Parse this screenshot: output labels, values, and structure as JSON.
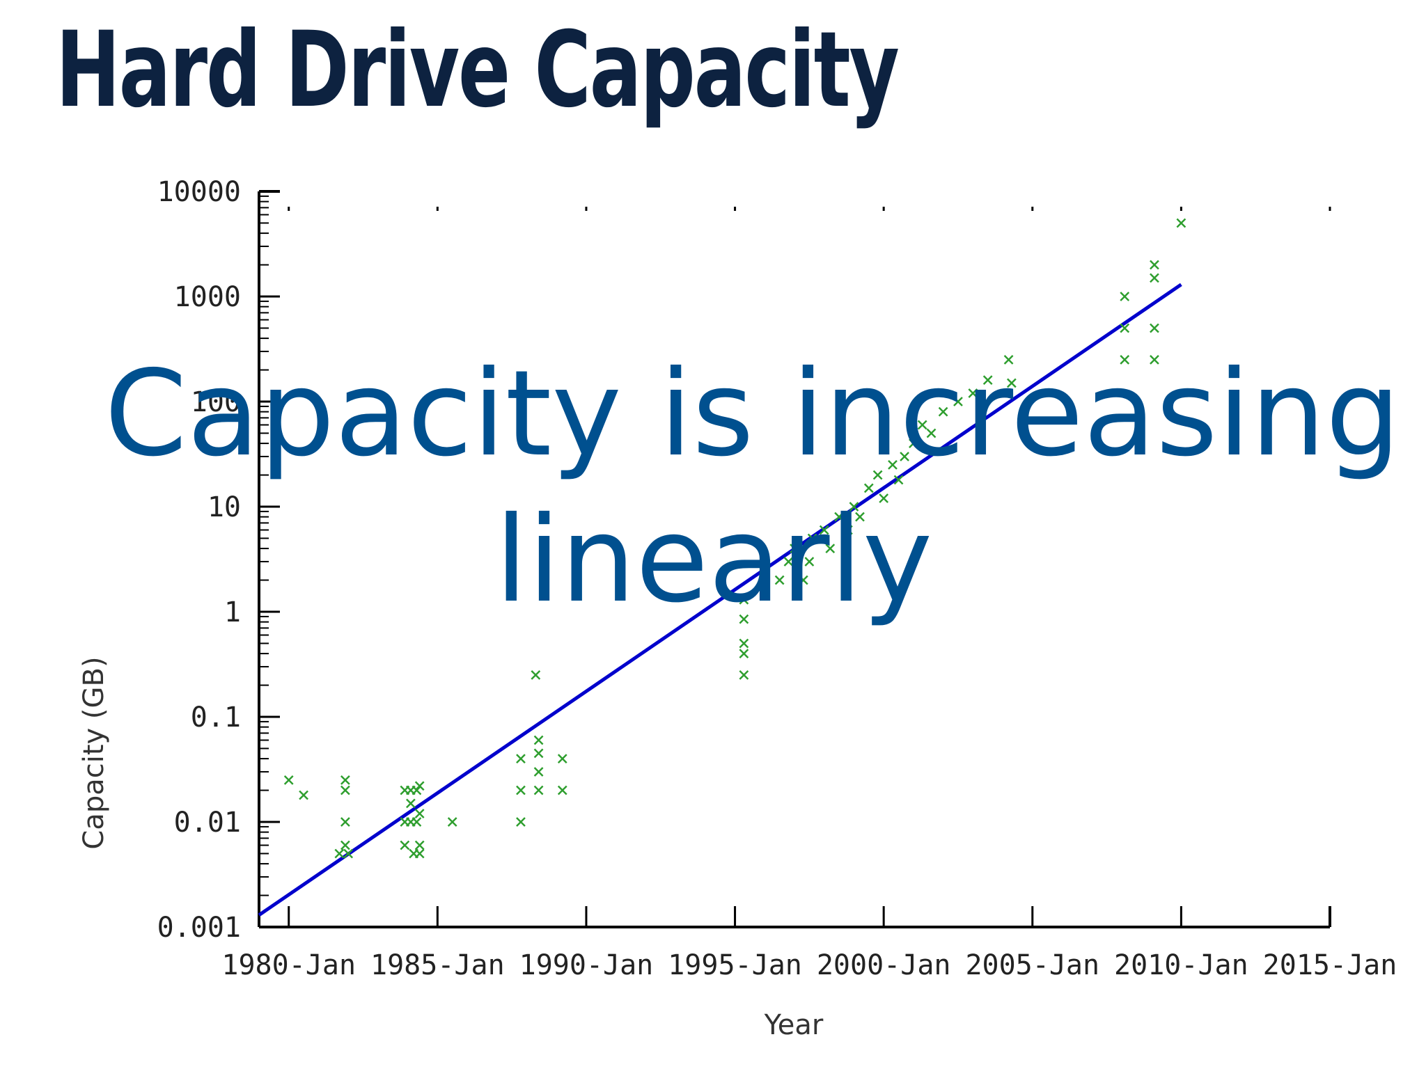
{
  "slide": {
    "title": "Hard Drive Capacity",
    "overlay_lines": [
      "Capacity is increasing",
      "linearly"
    ]
  },
  "colors": {
    "title": "#0d2240",
    "overlay_text": "#00508f",
    "trend_line": "#0000cc",
    "points": "#2e9e2e",
    "axis": "#000000"
  },
  "chart_data": {
    "type": "scatter",
    "xlabel": "Year",
    "ylabel": "Capacity (GB)",
    "y_scale": "log",
    "ylim": [
      0.001,
      10000
    ],
    "xlim": [
      1979,
      2015
    ],
    "x_ticks": [
      {
        "value": 1980,
        "label": "1980-Jan"
      },
      {
        "value": 1985,
        "label": "1985-Jan"
      },
      {
        "value": 1990,
        "label": "1990-Jan"
      },
      {
        "value": 1995,
        "label": "1995-Jan"
      },
      {
        "value": 2000,
        "label": "2000-Jan"
      },
      {
        "value": 2005,
        "label": "2005-Jan"
      },
      {
        "value": 2010,
        "label": "2010-Jan"
      },
      {
        "value": 2015,
        "label": "2015-Jan"
      }
    ],
    "y_ticks": [
      {
        "value": 0.001,
        "label": "0.001"
      },
      {
        "value": 0.01,
        "label": "0.01"
      },
      {
        "value": 0.1,
        "label": "0.1"
      },
      {
        "value": 1,
        "label": "1"
      },
      {
        "value": 10,
        "label": "10"
      },
      {
        "value": 100,
        "label": "100"
      },
      {
        "value": 1000,
        "label": "1000"
      },
      {
        "value": 10000,
        "label": "10000"
      }
    ],
    "grid": false,
    "marker": "x",
    "trend_line": {
      "x": [
        1979.0,
        2010.0
      ],
      "y": [
        0.0013,
        1300
      ]
    },
    "points": [
      {
        "x": 1980.0,
        "y": 0.025
      },
      {
        "x": 1980.5,
        "y": 0.018
      },
      {
        "x": 1981.7,
        "y": 0.005
      },
      {
        "x": 1981.9,
        "y": 0.025
      },
      {
        "x": 1981.9,
        "y": 0.02
      },
      {
        "x": 1981.9,
        "y": 0.01
      },
      {
        "x": 1981.9,
        "y": 0.006
      },
      {
        "x": 1982.0,
        "y": 0.005
      },
      {
        "x": 1983.9,
        "y": 0.02
      },
      {
        "x": 1983.9,
        "y": 0.01
      },
      {
        "x": 1983.9,
        "y": 0.006
      },
      {
        "x": 1984.1,
        "y": 0.02
      },
      {
        "x": 1984.1,
        "y": 0.015
      },
      {
        "x": 1984.1,
        "y": 0.01
      },
      {
        "x": 1984.2,
        "y": 0.005
      },
      {
        "x": 1984.3,
        "y": 0.02
      },
      {
        "x": 1984.3,
        "y": 0.01
      },
      {
        "x": 1984.4,
        "y": 0.022
      },
      {
        "x": 1984.4,
        "y": 0.012
      },
      {
        "x": 1984.4,
        "y": 0.006
      },
      {
        "x": 1984.4,
        "y": 0.005
      },
      {
        "x": 1985.5,
        "y": 0.01
      },
      {
        "x": 1987.8,
        "y": 0.04
      },
      {
        "x": 1987.8,
        "y": 0.02
      },
      {
        "x": 1987.8,
        "y": 0.01
      },
      {
        "x": 1988.3,
        "y": 0.25
      },
      {
        "x": 1988.4,
        "y": 0.06
      },
      {
        "x": 1988.4,
        "y": 0.045
      },
      {
        "x": 1988.4,
        "y": 0.03
      },
      {
        "x": 1988.4,
        "y": 0.02
      },
      {
        "x": 1989.2,
        "y": 0.04
      },
      {
        "x": 1989.2,
        "y": 0.02
      },
      {
        "x": 1995.3,
        "y": 1.3
      },
      {
        "x": 1995.3,
        "y": 0.85
      },
      {
        "x": 1995.3,
        "y": 0.5
      },
      {
        "x": 1995.3,
        "y": 0.4
      },
      {
        "x": 1995.3,
        "y": 0.25
      },
      {
        "x": 1996.5,
        "y": 2.0
      },
      {
        "x": 1996.8,
        "y": 3.0
      },
      {
        "x": 1997.0,
        "y": 4.0
      },
      {
        "x": 1997.3,
        "y": 2.0
      },
      {
        "x": 1997.5,
        "y": 3.0
      },
      {
        "x": 1997.6,
        "y": 5.0
      },
      {
        "x": 1998.0,
        "y": 6.0
      },
      {
        "x": 1998.2,
        "y": 4.0
      },
      {
        "x": 1998.5,
        "y": 8.0
      },
      {
        "x": 1998.8,
        "y": 6.0
      },
      {
        "x": 1999.0,
        "y": 10.0
      },
      {
        "x": 1999.2,
        "y": 8.0
      },
      {
        "x": 1999.5,
        "y": 15.0
      },
      {
        "x": 1999.8,
        "y": 20.0
      },
      {
        "x": 2000.0,
        "y": 12.0
      },
      {
        "x": 2000.3,
        "y": 25.0
      },
      {
        "x": 2000.5,
        "y": 18.0
      },
      {
        "x": 2000.7,
        "y": 30.0
      },
      {
        "x": 2001.0,
        "y": 40.0
      },
      {
        "x": 2001.3,
        "y": 60.0
      },
      {
        "x": 2001.6,
        "y": 50.0
      },
      {
        "x": 2002.0,
        "y": 80.0
      },
      {
        "x": 2002.5,
        "y": 100.0
      },
      {
        "x": 2003.0,
        "y": 120.0
      },
      {
        "x": 2003.5,
        "y": 160.0
      },
      {
        "x": 2004.2,
        "y": 250.0
      },
      {
        "x": 2004.3,
        "y": 150.0
      },
      {
        "x": 2008.1,
        "y": 1000.0
      },
      {
        "x": 2008.1,
        "y": 500.0
      },
      {
        "x": 2008.1,
        "y": 250.0
      },
      {
        "x": 2009.1,
        "y": 2000.0
      },
      {
        "x": 2009.1,
        "y": 1500.0
      },
      {
        "x": 2009.1,
        "y": 500.0
      },
      {
        "x": 2009.1,
        "y": 250.0
      },
      {
        "x": 2010.0,
        "y": 5000.0
      }
    ]
  }
}
